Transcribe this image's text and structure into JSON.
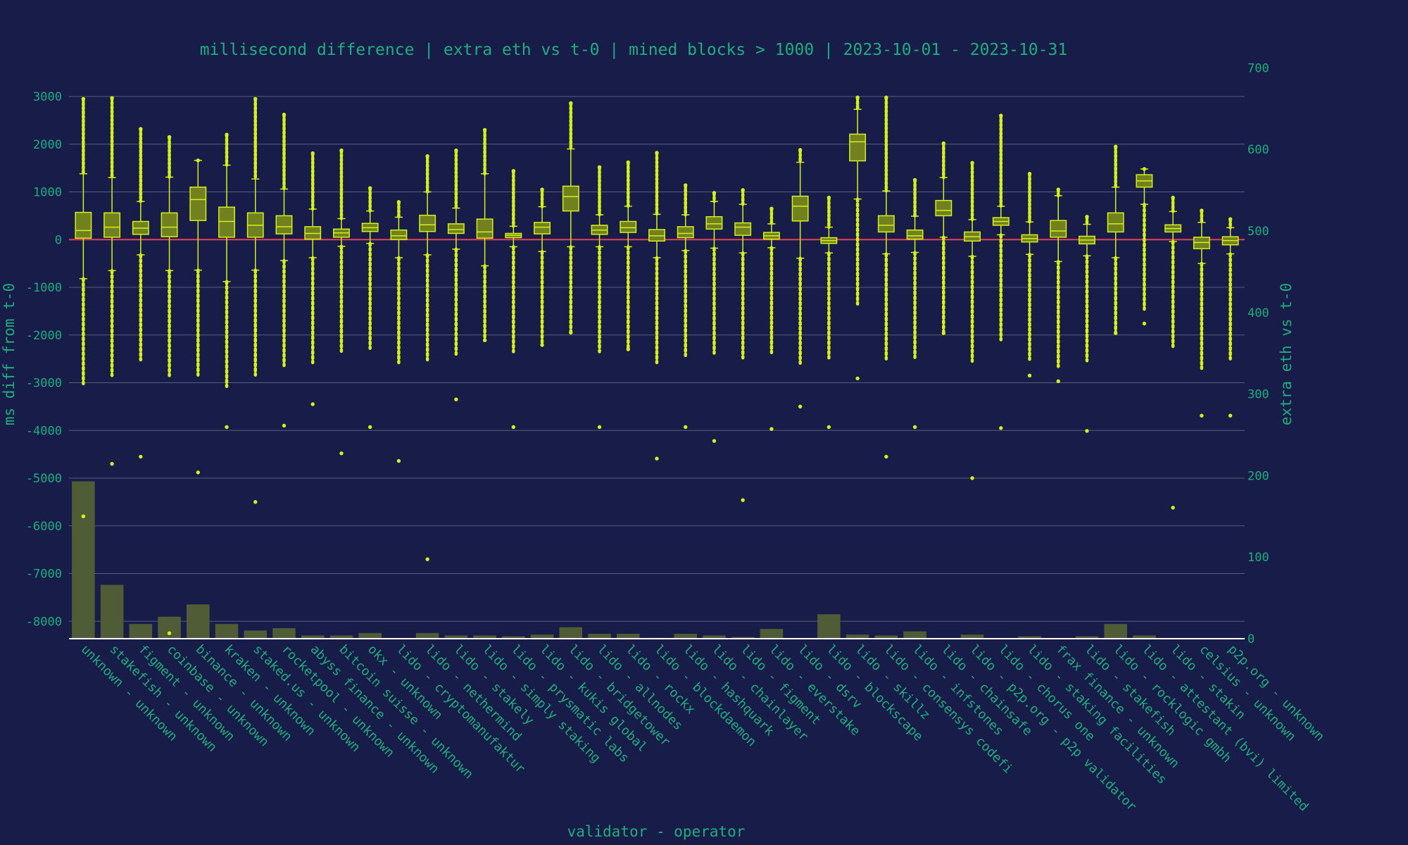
{
  "chart_data": {
    "type": "box",
    "title": "millisecond difference | extra eth vs t-0 | mined blocks > 1000 | 2023-10-01 - 2023-10-31",
    "xlabel": "validator - operator",
    "ylabel_left": "ms diff from t-0",
    "ylabel_right": "extra eth vs t-0",
    "ylim_left": [
      -8400,
      3000
    ],
    "ylim_right": [
      0,
      700
    ],
    "yticks_left": [
      "3000",
      "2000",
      "1000",
      "0",
      "-1000",
      "-2000",
      "-3000",
      "-4000",
      "-5000",
      "-6000",
      "-7000",
      "-8000"
    ],
    "yticks_right": [
      "700",
      "600",
      "500",
      "400",
      "300",
      "200",
      "100",
      "0"
    ],
    "reference_line_y": 0,
    "colors": {
      "background": "#171c48",
      "box": "#d4f01a",
      "box_fill": "#70811e",
      "bar": "#4f5c36",
      "text": "#1fae7d",
      "grid": "#565c7e",
      "zero_line": "#e2415a",
      "axis": "#ffffff"
    },
    "categories": [
      "unknown - unknown",
      "stakefish - unknown",
      "figment - unknown",
      "coinbase - unknown",
      "binance - unknown",
      "kraken - unknown",
      "staked.us - unknown",
      "rocketpool - unknown",
      "abyss finance - unknown",
      "bitcoin suisse - unknown",
      "okx - unknown",
      "lido - cryptomanufaktur",
      "lido - nethermind",
      "lido - stakely",
      "lido - simply staking",
      "lido - prysmatic labs",
      "lido - kukis global",
      "lido - bridgetower",
      "lido - allnodes",
      "lido - rockx",
      "lido - blockdaemon",
      "lido - hashquark",
      "lido - chainlayer",
      "lido - figment",
      "lido - everstake",
      "lido - dsrv",
      "lido - blockscape",
      "lido - skillz",
      "lido - consensys codefi",
      "lido - infstones",
      "lido - chainsafe",
      "lido - p2p.org - p2p validator",
      "lido - chorus one",
      "lido - staking facilities",
      "frax finance - unknown",
      "lido - stakefish",
      "lido - rocklogic gmbh",
      "lido - attestant (bvi) limited",
      "lido - stakin",
      "celsius - unknown",
      "p2p.org - unknown"
    ],
    "box_series": [
      {
        "q1": 30,
        "median": 190,
        "q3": 570,
        "lower_whisker": -820,
        "upper_whisker": 1380,
        "min_outlier": -5800,
        "max_outlier": 2950
      },
      {
        "q1": 50,
        "median": 260,
        "q3": 560,
        "lower_whisker": -650,
        "upper_whisker": 1300,
        "min_outlier": -4700,
        "max_outlier": 2970
      },
      {
        "q1": 110,
        "median": 240,
        "q3": 380,
        "lower_whisker": -320,
        "upper_whisker": 800,
        "min_outlier": -4550,
        "max_outlier": 2320
      },
      {
        "q1": 60,
        "median": 260,
        "q3": 560,
        "lower_whisker": -650,
        "upper_whisker": 1310,
        "min_outlier": -8250,
        "max_outlier": 2150
      },
      {
        "q1": 400,
        "median": 840,
        "q3": 1100,
        "lower_whisker": -640,
        "upper_whisker": 1660,
        "min_outlier": -4880,
        "max_outlier": 1660
      },
      {
        "q1": 50,
        "median": 380,
        "q3": 680,
        "lower_whisker": -880,
        "upper_whisker": 1560,
        "min_outlier": -3930,
        "max_outlier": 2200
      },
      {
        "q1": 50,
        "median": 300,
        "q3": 560,
        "lower_whisker": -640,
        "upper_whisker": 1270,
        "min_outlier": -5500,
        "max_outlier": 2950
      },
      {
        "q1": 120,
        "median": 270,
        "q3": 500,
        "lower_whisker": -440,
        "upper_whisker": 1060,
        "min_outlier": -3900,
        "max_outlier": 2620
      },
      {
        "q1": 10,
        "median": 130,
        "q3": 270,
        "lower_whisker": -380,
        "upper_whisker": 640,
        "min_outlier": -3450,
        "max_outlier": 1810
      },
      {
        "q1": 50,
        "median": 140,
        "q3": 220,
        "lower_whisker": -140,
        "upper_whisker": 440,
        "min_outlier": -4480,
        "max_outlier": 1870
      },
      {
        "q1": 170,
        "median": 250,
        "q3": 340,
        "lower_whisker": -80,
        "upper_whisker": 600,
        "min_outlier": -3930,
        "max_outlier": 1080
      },
      {
        "q1": 0,
        "median": 80,
        "q3": 200,
        "lower_whisker": -380,
        "upper_whisker": 470,
        "min_outlier": -4640,
        "max_outlier": 790
      },
      {
        "q1": 170,
        "median": 310,
        "q3": 510,
        "lower_whisker": -320,
        "upper_whisker": 1000,
        "min_outlier": -6700,
        "max_outlier": 1750
      },
      {
        "q1": 130,
        "median": 210,
        "q3": 330,
        "lower_whisker": -200,
        "upper_whisker": 660,
        "min_outlier": -3350,
        "max_outlier": 1870
      },
      {
        "q1": 30,
        "median": 160,
        "q3": 430,
        "lower_whisker": -550,
        "upper_whisker": 1380,
        "min_outlier": -2110,
        "max_outlier": 2300
      },
      {
        "q1": 40,
        "median": 90,
        "q3": 130,
        "lower_whisker": -150,
        "upper_whisker": 280,
        "min_outlier": -3930,
        "max_outlier": 1440
      },
      {
        "q1": 120,
        "median": 260,
        "q3": 360,
        "lower_whisker": -250,
        "upper_whisker": 690,
        "min_outlier": -2210,
        "max_outlier": 1050
      },
      {
        "q1": 600,
        "median": 900,
        "q3": 1120,
        "lower_whisker": -150,
        "upper_whisker": 1900,
        "min_outlier": -1950,
        "max_outlier": 2860
      },
      {
        "q1": 110,
        "median": 200,
        "q3": 300,
        "lower_whisker": -150,
        "upper_whisker": 520,
        "min_outlier": -3930,
        "max_outlier": 1520
      },
      {
        "q1": 150,
        "median": 250,
        "q3": 380,
        "lower_whisker": -150,
        "upper_whisker": 700,
        "min_outlier": -2300,
        "max_outlier": 1620
      },
      {
        "q1": -30,
        "median": 80,
        "q3": 210,
        "lower_whisker": -380,
        "upper_whisker": 530,
        "min_outlier": -4590,
        "max_outlier": 1820
      },
      {
        "q1": 40,
        "median": 130,
        "q3": 270,
        "lower_whisker": -230,
        "upper_whisker": 520,
        "min_outlier": -3930,
        "max_outlier": 1140
      },
      {
        "q1": 220,
        "median": 330,
        "q3": 480,
        "lower_whisker": -180,
        "upper_whisker": 800,
        "min_outlier": -4220,
        "max_outlier": 980
      },
      {
        "q1": 90,
        "median": 260,
        "q3": 350,
        "lower_whisker": -280,
        "upper_whisker": 740,
        "min_outlier": -5460,
        "max_outlier": 1040
      },
      {
        "q1": 10,
        "median": 80,
        "q3": 150,
        "lower_whisker": -170,
        "upper_whisker": 330,
        "min_outlier": -3970,
        "max_outlier": 650
      },
      {
        "q1": 390,
        "median": 700,
        "q3": 910,
        "lower_whisker": -390,
        "upper_whisker": 1620,
        "min_outlier": -3500,
        "max_outlier": 1880
      },
      {
        "q1": -80,
        "median": -20,
        "q3": 40,
        "lower_whisker": -280,
        "upper_whisker": 260,
        "min_outlier": -3930,
        "max_outlier": 880
      },
      {
        "q1": 1650,
        "median": 2050,
        "q3": 2210,
        "lower_whisker": 850,
        "upper_whisker": 2730,
        "min_outlier": -2910,
        "max_outlier": 2980
      },
      {
        "q1": 160,
        "median": 300,
        "q3": 500,
        "lower_whisker": -300,
        "upper_whisker": 1020,
        "min_outlier": -4550,
        "max_outlier": 2980
      },
      {
        "q1": 10,
        "median": 80,
        "q3": 200,
        "lower_whisker": -270,
        "upper_whisker": 490,
        "min_outlier": -3930,
        "max_outlier": 1250
      },
      {
        "q1": 500,
        "median": 610,
        "q3": 820,
        "lower_whisker": 50,
        "upper_whisker": 1300,
        "min_outlier": -1960,
        "max_outlier": 2020
      },
      {
        "q1": -30,
        "median": 60,
        "q3": 160,
        "lower_whisker": -350,
        "upper_whisker": 420,
        "min_outlier": -5000,
        "max_outlier": 1610
      },
      {
        "q1": 300,
        "median": 380,
        "q3": 460,
        "lower_whisker": 100,
        "upper_whisker": 700,
        "min_outlier": -3950,
        "max_outlier": 2600
      },
      {
        "q1": -50,
        "median": 20,
        "q3": 100,
        "lower_whisker": -310,
        "upper_whisker": 370,
        "min_outlier": -2850,
        "max_outlier": 1380
      },
      {
        "q1": 50,
        "median": 180,
        "q3": 400,
        "lower_whisker": -460,
        "upper_whisker": 920,
        "min_outlier": -2970,
        "max_outlier": 1050
      },
      {
        "q1": -90,
        "median": -10,
        "q3": 70,
        "lower_whisker": -340,
        "upper_whisker": 320,
        "min_outlier": -4010,
        "max_outlier": 480
      },
      {
        "q1": 160,
        "median": 330,
        "q3": 560,
        "lower_whisker": -380,
        "upper_whisker": 1100,
        "min_outlier": -1960,
        "max_outlier": 1950
      },
      {
        "q1": 1100,
        "median": 1230,
        "q3": 1360,
        "lower_whisker": 740,
        "upper_whisker": 1480,
        "min_outlier": -1760,
        "max_outlier": 1480
      },
      {
        "q1": 160,
        "median": 230,
        "q3": 310,
        "lower_whisker": -40,
        "upper_whisker": 590,
        "min_outlier": -5620,
        "max_outlier": 880
      },
      {
        "q1": -190,
        "median": -60,
        "q3": 50,
        "lower_whisker": -500,
        "upper_whisker": 360,
        "min_outlier": -3690,
        "max_outlier": 610
      },
      {
        "q1": -110,
        "median": -20,
        "q3": 60,
        "lower_whisker": -300,
        "upper_whisker": 250,
        "min_outlier": -3690,
        "max_outlier": 430
      }
    ],
    "bar_series": {
      "values": [
        193,
        66,
        18,
        27,
        42,
        18,
        10,
        13,
        4,
        4,
        7,
        0,
        7,
        4,
        4,
        3,
        5,
        14,
        6,
        6,
        1,
        6,
        4,
        2,
        12,
        0,
        30,
        5,
        4,
        9,
        0,
        5,
        0,
        3,
        0,
        3,
        18,
        4,
        0,
        0,
        0
      ]
    }
  }
}
